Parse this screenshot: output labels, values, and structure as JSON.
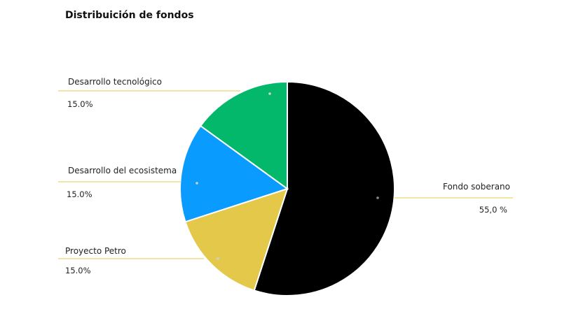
{
  "chart_data": {
    "type": "pie",
    "title": "Distribuición de fondos",
    "slices": [
      {
        "label": "Fondo soberano",
        "value": 55.0,
        "value_label": "55,0 %",
        "color": "#000000"
      },
      {
        "label": "Proyecto Petro",
        "value": 15.0,
        "value_label": "15.0%",
        "color": "#E3C84A"
      },
      {
        "label": "Desarrollo del ecosistema",
        "value": 15.0,
        "value_label": "15.0%",
        "color": "#0A9BFF"
      },
      {
        "label": "Desarrollo tecnológico",
        "value": 15.0,
        "value_label": "15.0%",
        "color": "#03B86A"
      }
    ],
    "leader_line_color": "#E3C84A"
  }
}
